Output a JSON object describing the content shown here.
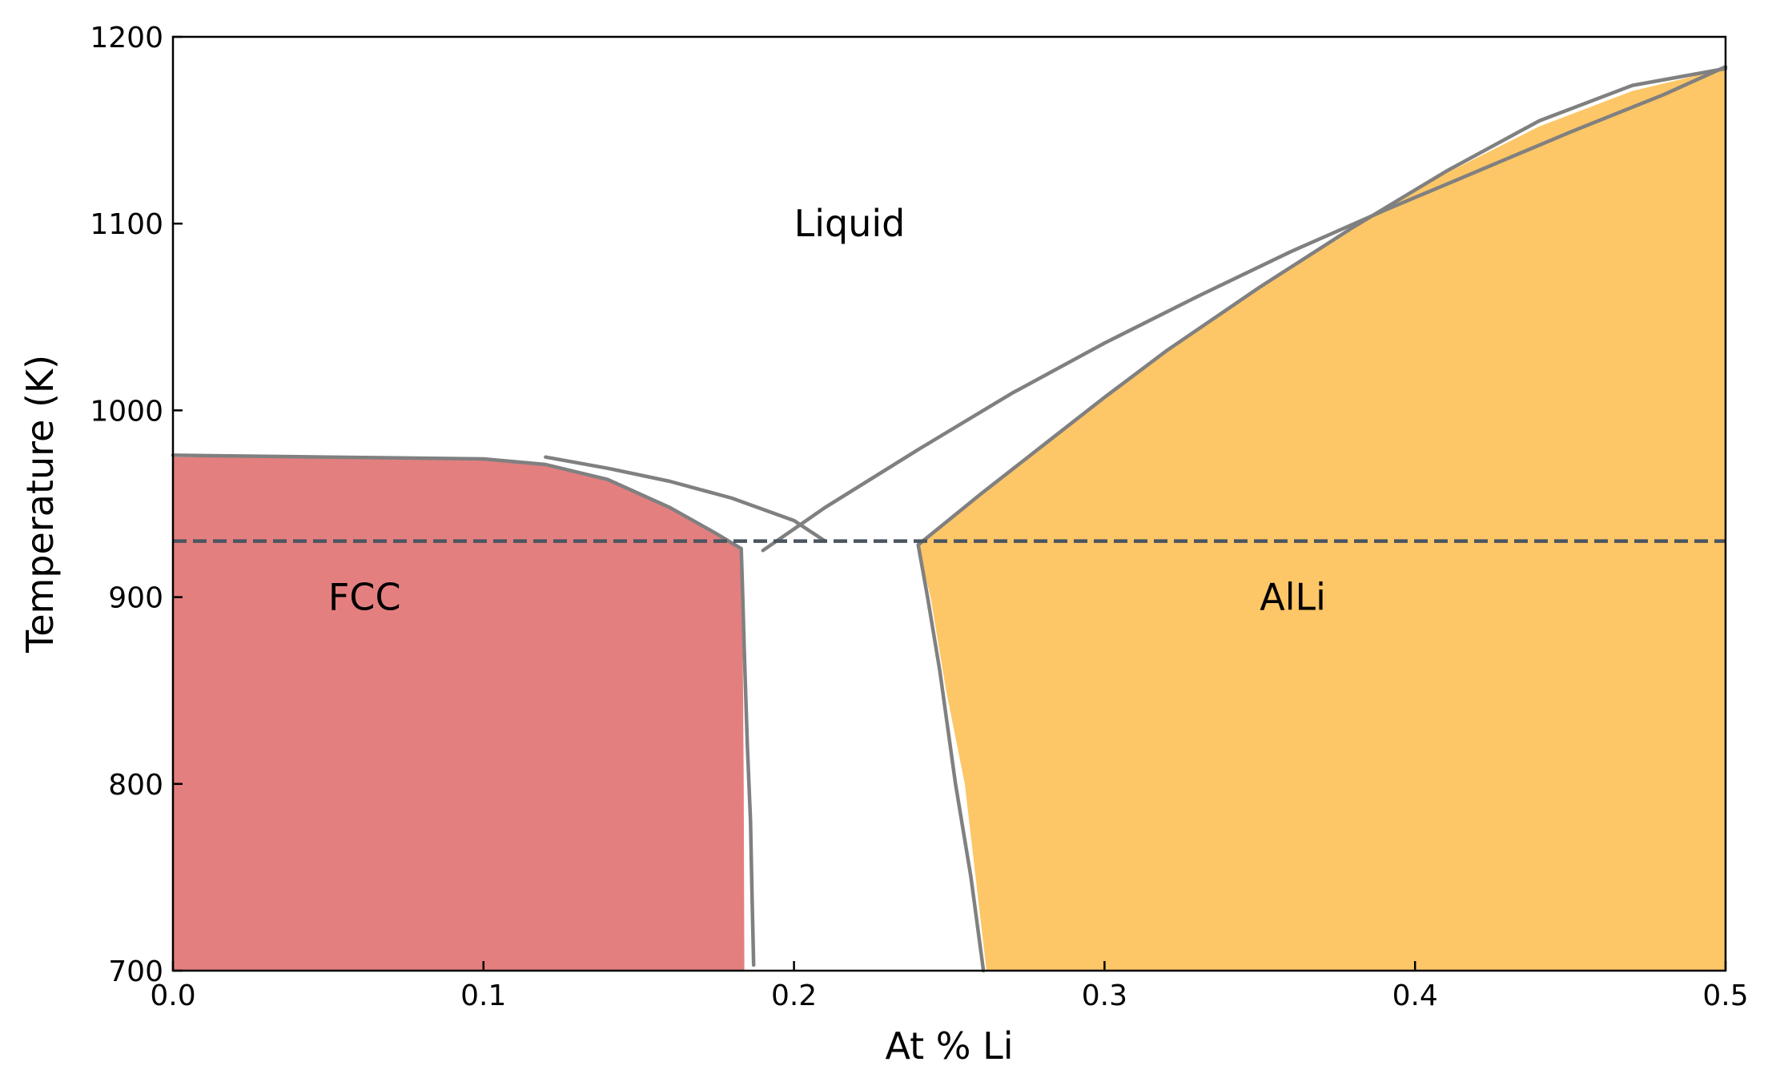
{
  "chart_data": {
    "type": "area",
    "title": "",
    "xlabel": "At % Li",
    "ylabel": "Temperature (K)",
    "xlim": [
      0.0,
      0.5
    ],
    "ylim": [
      700,
      1200
    ],
    "xticks": [
      0.0,
      0.1,
      0.2,
      0.3,
      0.4,
      0.5
    ],
    "xtick_labels": [
      "0.0",
      "0.1",
      "0.2",
      "0.3",
      "0.4",
      "0.5"
    ],
    "yticks": [
      700,
      800,
      900,
      1000,
      1100,
      1200
    ],
    "ytick_labels": [
      "700",
      "800",
      "900",
      "1000",
      "1100",
      "1200"
    ],
    "grid": false,
    "ticks_inside": true,
    "colors": {
      "fcc_fill": "#e47f7f",
      "allil_fill": "#fdc667",
      "boundary": "#808080",
      "eutectic_line": "#4a5560"
    },
    "annotations": [
      {
        "text": "Liquid",
        "x": 0.2,
        "y": 1100
      },
      {
        "text": "FCC",
        "x": 0.05,
        "y": 900
      },
      {
        "text": "AlLi",
        "x": 0.35,
        "y": 900
      }
    ],
    "eutectic": {
      "T": 930,
      "x_range": [
        0.0,
        0.5
      ],
      "style": "dashed"
    },
    "regions": [
      {
        "label": "FCC",
        "x": [
          0.0,
          0.05,
          0.1,
          0.12,
          0.14,
          0.16,
          0.175,
          0.183,
          0.1833,
          0.1836,
          0.1838,
          0.184,
          0.0
        ],
        "y": [
          975,
          974.5,
          973.5,
          971,
          963,
          948,
          934,
          927,
          900,
          850,
          800,
          700,
          700
        ]
      },
      {
        "label": "AlLi",
        "x": [
          0.24,
          0.26,
          0.28,
          0.3,
          0.32,
          0.35,
          0.38,
          0.41,
          0.44,
          0.47,
          0.5,
          0.5,
          0.262,
          0.255,
          0.249,
          0.244,
          0.241
        ],
        "y": [
          929,
          955,
          981,
          1007,
          1032,
          1066,
          1098,
          1127,
          1152,
          1171,
          1183,
          700,
          700,
          800,
          850,
          900,
          920
        ]
      }
    ],
    "series": [
      {
        "x": [
          0.0,
          0.05,
          0.1,
          0.12,
          0.14,
          0.16,
          0.175,
          0.183
        ],
        "y": [
          976,
          975,
          974,
          971,
          963,
          948,
          934,
          926
        ]
      },
      {
        "x": [
          0.183,
          0.1835,
          0.184,
          0.185,
          0.186,
          0.1865,
          0.187
        ],
        "y": [
          926,
          900,
          870,
          820,
          780,
          740,
          703
        ]
      },
      {
        "x": [
          0.12,
          0.14,
          0.16,
          0.18,
          0.2,
          0.21
        ],
        "y": [
          975,
          969,
          962,
          953,
          941,
          930
        ]
      },
      {
        "x": [
          0.19,
          0.21,
          0.24,
          0.27,
          0.3,
          0.33,
          0.36,
          0.39,
          0.42,
          0.45,
          0.48,
          0.5
        ],
        "y": [
          925,
          948,
          979,
          1009,
          1036,
          1061,
          1085,
          1107,
          1128,
          1149,
          1169,
          1184
        ]
      },
      {
        "x": [
          0.24,
          0.26,
          0.28,
          0.3,
          0.32,
          0.35,
          0.38,
          0.41,
          0.44,
          0.47,
          0.5
        ],
        "y": [
          928,
          955,
          981,
          1007,
          1032,
          1066,
          1098,
          1128,
          1155,
          1174,
          1183
        ]
      },
      {
        "x": [
          0.24,
          0.243,
          0.247,
          0.252,
          0.257,
          0.261
        ],
        "y": [
          928,
          900,
          860,
          800,
          750,
          700
        ]
      }
    ]
  }
}
